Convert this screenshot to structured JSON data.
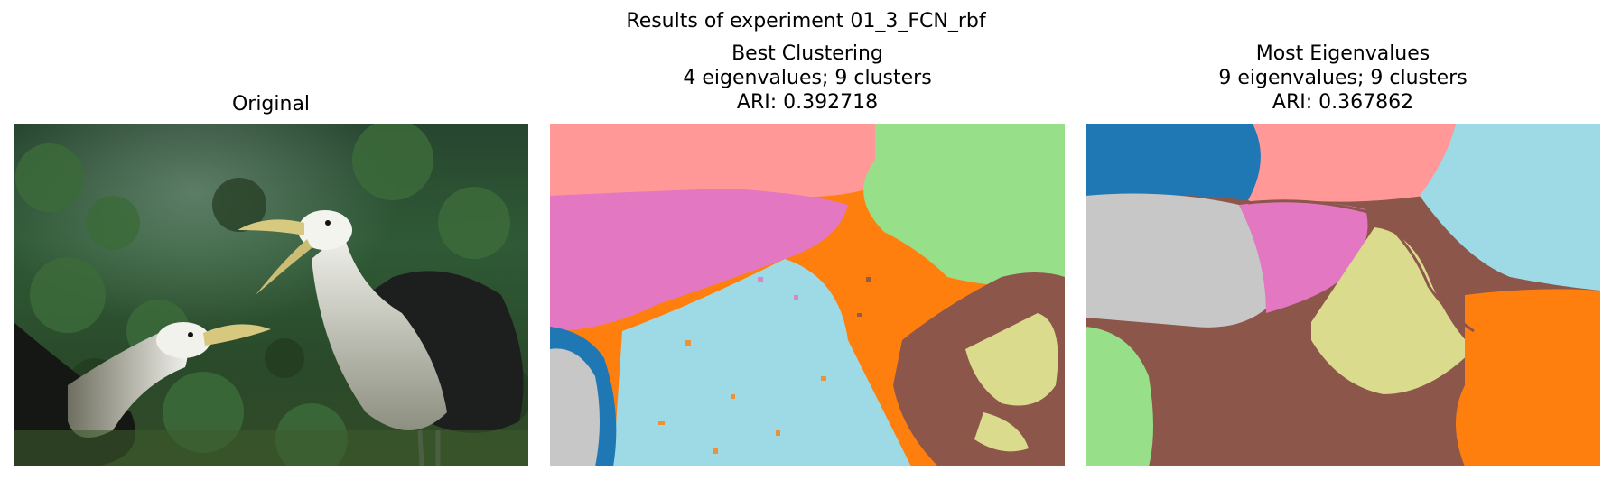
{
  "figure": {
    "suptitle": "Results of experiment 01_3_FCN_rbf"
  },
  "panels": [
    {
      "id": "original",
      "title_lines": [
        "Original"
      ]
    },
    {
      "id": "best-clustering",
      "title_lines": [
        "Best Clustering",
        "4 eigenvalues; 9 clusters",
        "ARI: 0.392718"
      ]
    },
    {
      "id": "most-eigenvalues",
      "title_lines": [
        "Most Eigenvalues",
        "9 eigenvalues; 9 clusters",
        "ARI: 0.367862"
      ]
    }
  ],
  "colors": {
    "blue": "#1f77b4",
    "salmon": "#ff9896",
    "lightgreen": "#98df8a",
    "pink": "#e377c2",
    "orange": "#ff7f0e",
    "lightblue": "#9edae5",
    "brown": "#8c564b",
    "khaki": "#dbdb8d",
    "gray": "#c7c7c7"
  }
}
